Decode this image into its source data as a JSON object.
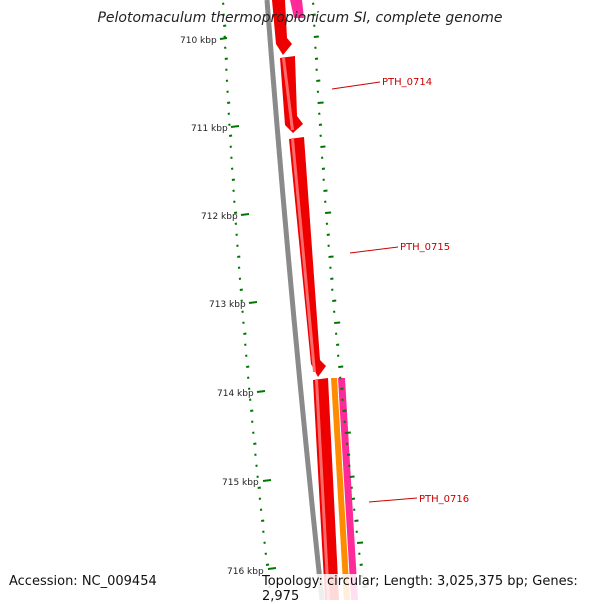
{
  "title": "Pelotomaculum thermopropionicum SI, complete genome",
  "ticks": [
    "710 kbp",
    "711 kbp",
    "712 kbp",
    "713 kbp",
    "714 kbp",
    "715 kbp",
    "716 kbp"
  ],
  "genes": [
    {
      "label": "PTH_0714"
    },
    {
      "label": "PTH_0715"
    },
    {
      "label": "PTH_0716"
    }
  ],
  "colors": {
    "forward_gene": "#ee0000",
    "reverse_gene": "#ff2a9a",
    "orange_gene": "#ff8c00",
    "backbone": "#808080",
    "gc_marks": "#007700",
    "label_line": "#cc0000"
  },
  "footer": {
    "accession": "Accession: NC_009454",
    "summary": "Topology: circular; Length: 3,025,375 bp; Genes: 2,975"
  }
}
